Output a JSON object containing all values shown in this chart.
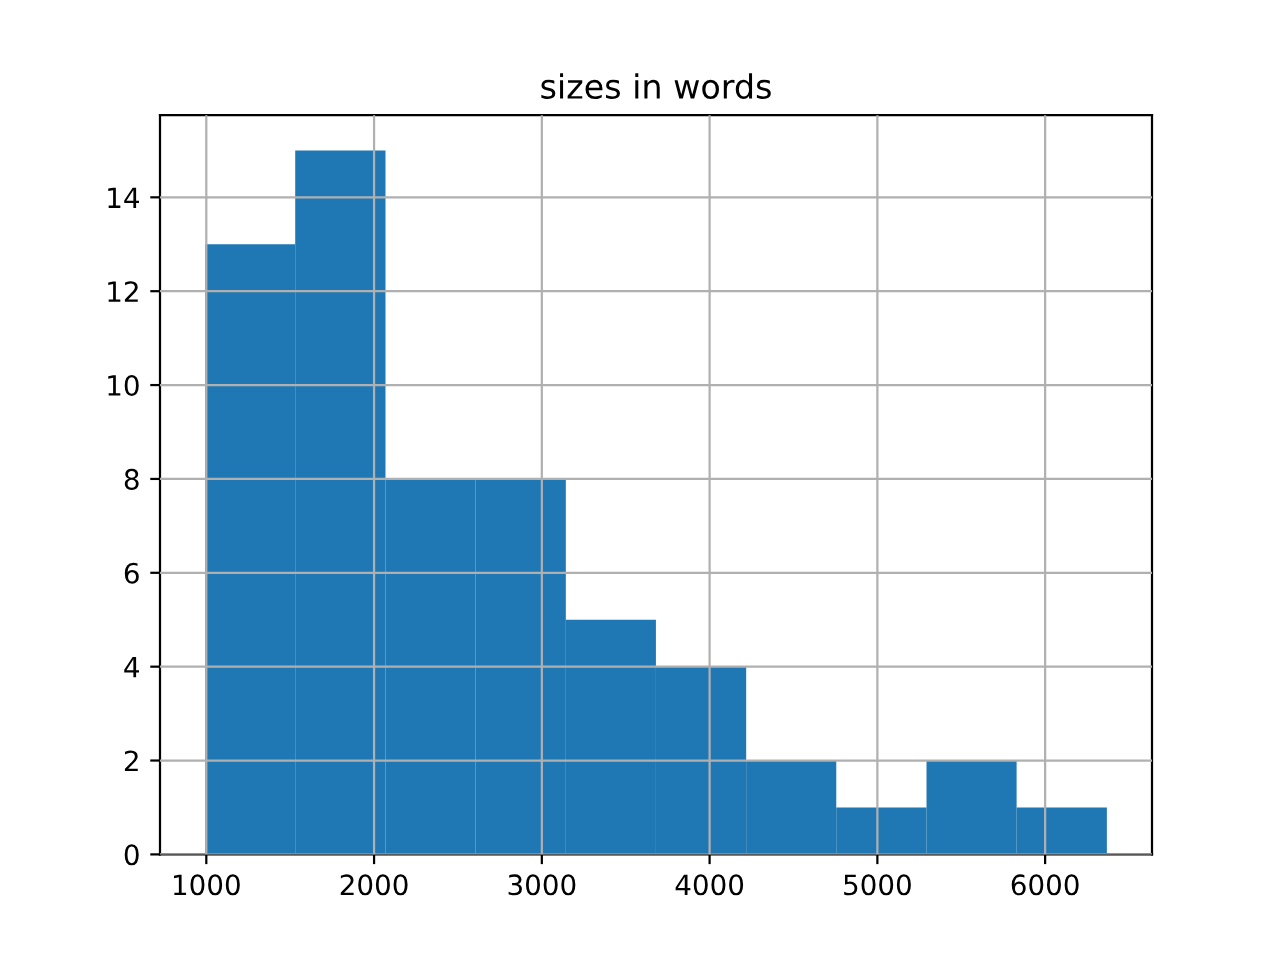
{
  "chart_data": {
    "type": "histogram",
    "title": "sizes in words",
    "bins": [
      993,
      1530,
      2068,
      2605,
      3143,
      3680,
      4218,
      4755,
      5293,
      5830,
      6368
    ],
    "values": [
      13,
      15,
      8,
      8,
      5,
      4,
      2,
      1,
      2,
      1
    ],
    "color": "#1f77b4",
    "xlim": [
      724,
      6637
    ],
    "xticks": [
      1000,
      2000,
      3000,
      4000,
      5000,
      6000
    ],
    "ylim": [
      0,
      15.75
    ],
    "yticks": [
      0,
      2,
      4,
      6,
      8,
      10,
      12,
      14
    ],
    "grid": true
  }
}
